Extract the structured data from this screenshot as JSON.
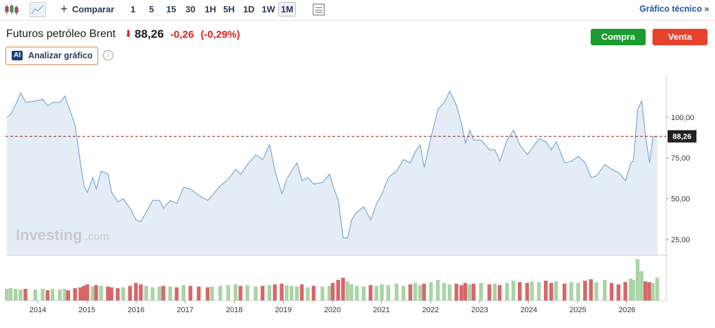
{
  "toolbar": {
    "compare": "Comparar",
    "intervals": [
      "1",
      "5",
      "15",
      "30",
      "1H",
      "5H",
      "1D",
      "1W",
      "1M"
    ],
    "technical": "Gráfico técnico »"
  },
  "instrument": {
    "name": "Futuros petróleo Brent",
    "change": "-0,26",
    "change_pct": "(-0,29%)"
  },
  "buttons": {
    "buy": "Compra",
    "sell": "Venta"
  },
  "analyze": {
    "badge": "AI",
    "label": "Analizar gráfico"
  },
  "watermark": {
    "brand": "Investing",
    "suffix": ".com"
  },
  "chart_data": {
    "type": "area",
    "color": "#7ba7cf",
    "fill": "#e4edf5",
    "x": [
      2013.37,
      2013.45,
      2013.55,
      2013.65,
      2013.75,
      2013.95,
      2014.1,
      2014.2,
      2014.3,
      2014.45,
      2014.55,
      2014.62,
      2014.76,
      2014.87,
      2014.94,
      2015.01,
      2015.12,
      2015.19,
      2015.29,
      2015.43,
      2015.5,
      2015.63,
      2015.74,
      2015.88,
      2016.0,
      2016.1,
      2016.21,
      2016.34,
      2016.48,
      2016.56,
      2016.7,
      2016.83,
      2016.97,
      2017.11,
      2017.28,
      2017.46,
      2017.55,
      2017.72,
      2017.88,
      2018.03,
      2018.13,
      2018.27,
      2018.44,
      2018.58,
      2018.72,
      2018.83,
      2018.97,
      2019.07,
      2019.17,
      2019.28,
      2019.38,
      2019.5,
      2019.62,
      2019.8,
      2019.94,
      2020.01,
      2020.12,
      2020.22,
      2020.31,
      2020.39,
      2020.5,
      2020.64,
      2020.78,
      2020.9,
      2021.01,
      2021.14,
      2021.31,
      2021.45,
      2021.59,
      2021.69,
      2021.79,
      2021.87,
      2022.01,
      2022.15,
      2022.28,
      2022.39,
      2022.53,
      2022.63,
      2022.71,
      2022.8,
      2022.88,
      2023.03,
      2023.2,
      2023.31,
      2023.41,
      2023.56,
      2023.69,
      2023.82,
      2023.97,
      2024.07,
      2024.21,
      2024.35,
      2024.46,
      2024.56,
      2024.73,
      2024.87,
      2025.01,
      2025.15,
      2025.27,
      2025.38,
      2025.55,
      2025.69,
      2025.83,
      2025.97,
      2026.08,
      2026.13,
      2026.22,
      2026.3,
      2026.38,
      2026.46,
      2026.53,
      2026.62
    ],
    "values": [
      100,
      102,
      108,
      115,
      109,
      110,
      111,
      107,
      109,
      109,
      113,
      107,
      95,
      71,
      58,
      54,
      63,
      56,
      67,
      65,
      54,
      48,
      50,
      44,
      37,
      36,
      42,
      49,
      49,
      44,
      49,
      47,
      57,
      56,
      52,
      49,
      52,
      58,
      62,
      68,
      65,
      71,
      77,
      74,
      83,
      67,
      53,
      62,
      67,
      72,
      61,
      63,
      59,
      60,
      65,
      58,
      49,
      26,
      26,
      37,
      42,
      45,
      37,
      47,
      53,
      63,
      67,
      74,
      72,
      79,
      83,
      69,
      88,
      105,
      109,
      116,
      107,
      96,
      84,
      92,
      86,
      86,
      80,
      80,
      73,
      86,
      92,
      83,
      77,
      81,
      87,
      85,
      80,
      85,
      72,
      73,
      76,
      72,
      63,
      64,
      71,
      68,
      66,
      61,
      72,
      73,
      105,
      110,
      88,
      72,
      88,
      88.26
    ],
    "volume": {
      "values": [
        16,
        17,
        16,
        15,
        16,
        15,
        16,
        14,
        16,
        15,
        16,
        14,
        17,
        18,
        20,
        22,
        19,
        21,
        20,
        19,
        18,
        17,
        18,
        20,
        24,
        22,
        20,
        18,
        19,
        20,
        19,
        18,
        21,
        20,
        19,
        18,
        19,
        20,
        21,
        22,
        20,
        21,
        19,
        20,
        21,
        22,
        23,
        21,
        20,
        19,
        22,
        18,
        20,
        19,
        20,
        24,
        28,
        31,
        26,
        22,
        20,
        19,
        21,
        20,
        22,
        21,
        23,
        20,
        22,
        24,
        21,
        23,
        25,
        28,
        24,
        22,
        23,
        21,
        24,
        22,
        23,
        24,
        22,
        23,
        21,
        24,
        27,
        25,
        24,
        26,
        25,
        27,
        24,
        26,
        23,
        25,
        24,
        27,
        29,
        25,
        28,
        24,
        22,
        25,
        30,
        28,
        56,
        40,
        26,
        25,
        24,
        31
      ]
    },
    "xlim": [
      2013.34,
      2026.8
    ],
    "xticks": [
      2014,
      2015,
      2016,
      2017,
      2018,
      2019,
      2020,
      2021,
      2022,
      2023,
      2024,
      2025,
      2026
    ],
    "ylim": [
      15.3,
      125.6
    ],
    "yticks": [
      {
        "value": 25,
        "label": "25,00"
      },
      {
        "value": 50,
        "label": "50,00"
      },
      {
        "value": 75,
        "label": "75,00"
      },
      {
        "value": 100,
        "label": "100,00"
      }
    ],
    "last": {
      "value": 88.26,
      "label": "88,26"
    }
  }
}
